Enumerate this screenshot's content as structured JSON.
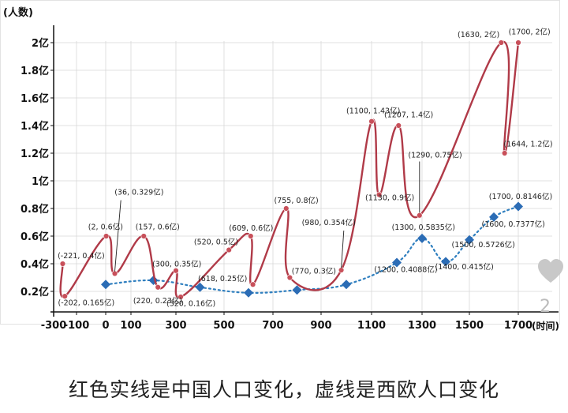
{
  "caption": "红色实线是中国人口变化，虚线是西欧人口变化",
  "watermark": "2",
  "colors": {
    "china": "#b03a48",
    "china_marker": "#c8505a",
    "europe": "#2f7fbf",
    "europe_marker": "#2b6cb5",
    "axis": "#111111",
    "grid": "#d8d8d8",
    "heart": "#c8c8c8"
  },
  "icons": {
    "heart": "heart-icon"
  },
  "chart_data": {
    "type": "line",
    "title": "",
    "ylabel": "(人数)",
    "xlabel": "(时间)",
    "xlim": [
      -300,
      1750
    ],
    "ylim": [
      0.1,
      2.05
    ],
    "x_ticks": [
      -300,
      -100,
      0,
      100,
      300,
      500,
      700,
      900,
      1100,
      1300,
      1500,
      1700
    ],
    "x_tick_labels": [
      "-300",
      "-100",
      "0",
      "100",
      "300",
      "500",
      "700",
      "900",
      "1100",
      "1300",
      "1500",
      "1700"
    ],
    "y_ticks": [
      0.2,
      0.4,
      0.6,
      0.8,
      1.0,
      1.2,
      1.4,
      1.6,
      1.8,
      2.0
    ],
    "y_tick_labels": [
      "0.2亿",
      "0.4亿",
      "0.6亿",
      "0.8亿",
      "1亿",
      "1.2亿",
      "1.4亿",
      "1.6亿",
      "1.8亿",
      "2亿"
    ],
    "grid": true,
    "series": [
      {
        "key": "china",
        "style": "solid",
        "points": [
          {
            "x": -221,
            "y": 0.4,
            "label": "(-221, 0.4亿)"
          },
          {
            "x": -202,
            "y": 0.165,
            "label": "(-202, 0.165亿)"
          },
          {
            "x": 2,
            "y": 0.6,
            "label": "(2, 0.6亿)"
          },
          {
            "x": 36,
            "y": 0.329,
            "label": "(36, 0.329亿)"
          },
          {
            "x": 157,
            "y": 0.6,
            "label": "(157, 0.6亿)"
          },
          {
            "x": 220,
            "y": 0.23,
            "label": "(220, 0.23亿)"
          },
          {
            "x": 300,
            "y": 0.35,
            "label": "(300, 0.35亿)"
          },
          {
            "x": 320,
            "y": 0.16,
            "label": "(320, 0.16亿)"
          },
          {
            "x": 520,
            "y": 0.5,
            "label": "(520, 0.5亿)"
          },
          {
            "x": 609,
            "y": 0.6,
            "label": "(609, 0.6亿)"
          },
          {
            "x": 618,
            "y": 0.25,
            "label": "(618, 0.25亿)"
          },
          {
            "x": 755,
            "y": 0.8,
            "label": "(755, 0.8亿)"
          },
          {
            "x": 770,
            "y": 0.3,
            "label": "(770, 0.3亿)"
          },
          {
            "x": 980,
            "y": 0.354,
            "label": "(980, 0.354亿)"
          },
          {
            "x": 1100,
            "y": 1.43,
            "label": "(1100, 1.43亿)"
          },
          {
            "x": 1130,
            "y": 0.9,
            "label": "(1130, 0.9亿)"
          },
          {
            "x": 1207,
            "y": 1.4,
            "label": "(1207, 1.4亿)"
          },
          {
            "x": 1290,
            "y": 0.75,
            "label": "(1290, 0.75亿)"
          },
          {
            "x": 1630,
            "y": 2.0,
            "label": "(1630, 2亿)"
          },
          {
            "x": 1644,
            "y": 1.2,
            "label": "(1644, 1.2亿)"
          },
          {
            "x": 1700,
            "y": 2.0,
            "label": "(1700, 2亿)"
          }
        ]
      },
      {
        "key": "europe",
        "style": "dotted",
        "points": [
          {
            "x": 0,
            "y": 0.25,
            "label": ""
          },
          {
            "x": 200,
            "y": 0.28,
            "label": ""
          },
          {
            "x": 400,
            "y": 0.23,
            "label": ""
          },
          {
            "x": 600,
            "y": 0.19,
            "label": ""
          },
          {
            "x": 800,
            "y": 0.21,
            "label": ""
          },
          {
            "x": 1000,
            "y": 0.25,
            "label": ""
          },
          {
            "x": 1200,
            "y": 0.4088,
            "label": "(1200, 0.4088亿)"
          },
          {
            "x": 1300,
            "y": 0.5835,
            "label": "(1300, 0.5835亿)"
          },
          {
            "x": 1400,
            "y": 0.415,
            "label": "(1400, 0.415亿)"
          },
          {
            "x": 1500,
            "y": 0.5726,
            "label": "(1500, 0.5726亿)"
          },
          {
            "x": 1600,
            "y": 0.7377,
            "label": "(1600, 0.7377亿)"
          },
          {
            "x": 1700,
            "y": 0.8146,
            "label": "(1700, 0.8146亿)"
          }
        ]
      }
    ]
  }
}
